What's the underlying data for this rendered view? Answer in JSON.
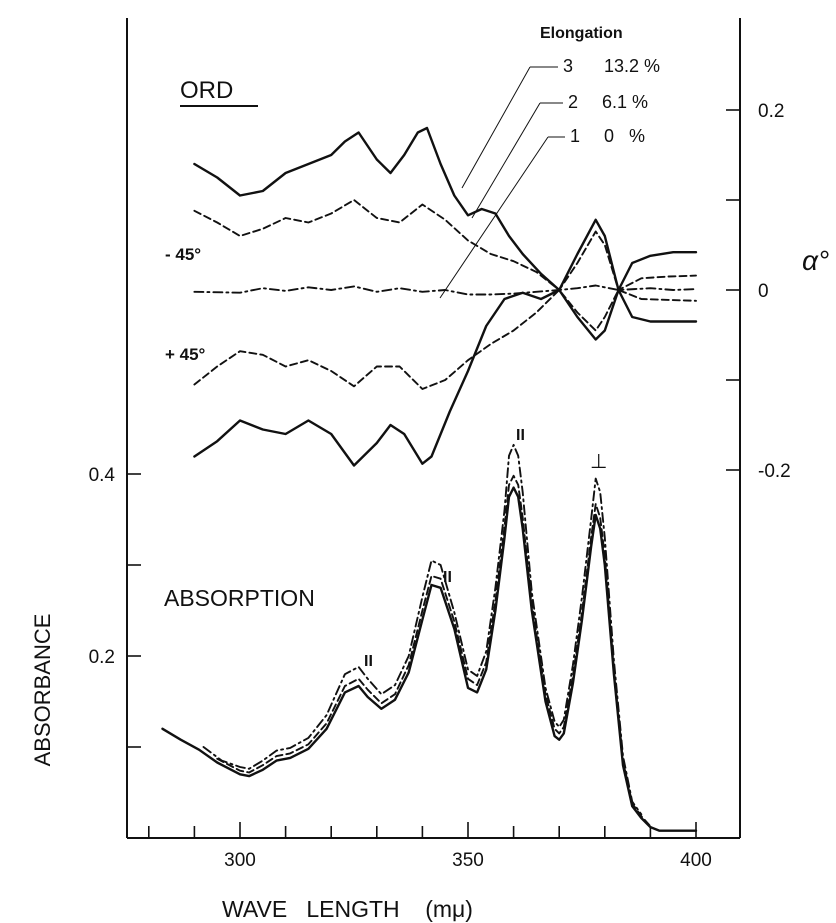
{
  "chart_data": {
    "type": "line",
    "x_unit_label": "WAVE LENGTH (mμ)",
    "xlabel": "WAVE   LENGTH    (mμ)",
    "xlim": [
      270,
      408
    ],
    "xticks": [
      300,
      350,
      400
    ],
    "ylabel_left": "ABSORBANCE",
    "ylim_left": [
      0,
      0.4
    ],
    "yticks_left": [
      0.2,
      0.4
    ],
    "ylabel_right": "α°",
    "ylim_right": [
      -0.2,
      0.2
    ],
    "yticks_right": [
      0.2,
      0,
      -0.2
    ],
    "yticks_right_labels": [
      "0.2",
      "0",
      "-0.2"
    ],
    "grid": false,
    "annotations": {
      "ord_title": "ORD",
      "abs_title": "ABSORPTION",
      "elongation_header": "Elongation",
      "minus45": "- 45°",
      "plus45": "+ 45°",
      "legend": [
        {
          "num": "3",
          "value": "13.2 %"
        },
        {
          "num": "2",
          "value": "6.1 %"
        },
        {
          "num": "1",
          "value": "0   %"
        }
      ],
      "peak_marks": [
        "II",
        "II",
        "II",
        "⊥"
      ]
    },
    "ord_series": [
      {
        "name": "3  13.2 % (-45°)",
        "style": "solid",
        "x": [
          290,
          295,
          300,
          305,
          310,
          315,
          320,
          323,
          326,
          330,
          333,
          336,
          339,
          341,
          344,
          347,
          350,
          353,
          356,
          359,
          362,
          366,
          370,
          374,
          378,
          380,
          383,
          386,
          390,
          395,
          400
        ],
        "y": [
          0.14,
          0.125,
          0.105,
          0.11,
          0.13,
          0.14,
          0.15,
          0.165,
          0.175,
          0.145,
          0.13,
          0.15,
          0.175,
          0.18,
          0.14,
          0.105,
          0.083,
          0.09,
          0.085,
          0.06,
          0.04,
          0.018,
          0.0,
          0.04,
          0.078,
          0.06,
          0.0,
          0.03,
          0.038,
          0.042,
          0.042
        ]
      },
      {
        "name": "2  6.1 % (-45°)",
        "style": "dashed",
        "x": [
          290,
          295,
          300,
          305,
          310,
          315,
          320,
          325,
          330,
          335,
          340,
          345,
          350,
          355,
          360,
          365,
          370,
          374,
          378,
          380,
          383,
          388,
          394,
          400
        ],
        "y": [
          0.088,
          0.075,
          0.06,
          0.068,
          0.08,
          0.075,
          0.085,
          0.1,
          0.08,
          0.075,
          0.095,
          0.078,
          0.055,
          0.04,
          0.032,
          0.02,
          0.0,
          0.03,
          0.065,
          0.05,
          0.0,
          0.013,
          0.015,
          0.016
        ]
      },
      {
        "name": "1  0 %",
        "style": "dashdot",
        "x": [
          290,
          300,
          305,
          310,
          315,
          320,
          325,
          330,
          335,
          340,
          345,
          350,
          355,
          360,
          370,
          374,
          378,
          383,
          390,
          395,
          400
        ],
        "y": [
          -0.002,
          -0.003,
          0.002,
          -0.001,
          0.003,
          0.0,
          0.004,
          -0.002,
          0.002,
          -0.002,
          0.0,
          -0.005,
          -0.005,
          -0.004,
          0.0,
          0.002,
          0.005,
          0.0,
          0.002,
          0.0,
          0.001
        ]
      },
      {
        "name": "2  6.1 % (+45°)",
        "style": "dashed",
        "x": [
          290,
          295,
          300,
          305,
          310,
          315,
          320,
          325,
          330,
          335,
          340,
          345,
          350,
          355,
          360,
          365,
          370,
          374,
          378,
          380,
          383,
          388,
          394,
          400
        ],
        "y": [
          -0.105,
          -0.085,
          -0.068,
          -0.072,
          -0.085,
          -0.078,
          -0.09,
          -0.107,
          -0.085,
          -0.085,
          -0.11,
          -0.1,
          -0.078,
          -0.06,
          -0.045,
          -0.025,
          0.0,
          -0.025,
          -0.045,
          -0.03,
          0.0,
          -0.01,
          -0.011,
          -0.012
        ]
      },
      {
        "name": "3  13.2 % (+45°)",
        "style": "solid",
        "x": [
          290,
          295,
          300,
          305,
          310,
          315,
          320,
          325,
          330,
          333,
          336,
          340,
          342,
          346,
          350,
          354,
          358,
          362,
          366,
          370,
          374,
          378,
          380,
          383,
          386,
          390,
          395,
          400
        ],
        "y": [
          -0.185,
          -0.168,
          -0.145,
          -0.155,
          -0.16,
          -0.145,
          -0.16,
          -0.195,
          -0.17,
          -0.15,
          -0.16,
          -0.193,
          -0.185,
          -0.135,
          -0.09,
          -0.04,
          -0.01,
          -0.003,
          -0.01,
          0.0,
          -0.03,
          -0.055,
          -0.045,
          0.0,
          -0.03,
          -0.035,
          -0.035,
          -0.035
        ]
      }
    ],
    "abs_series": [
      {
        "name": "1  0 %",
        "style": "solid",
        "x": [
          283,
          287,
          291,
          295,
          300,
          302,
          305,
          308,
          311,
          315,
          319,
          323,
          326,
          328,
          331,
          334,
          337,
          340,
          342,
          344,
          347,
          350,
          352,
          354,
          356,
          358,
          359,
          360,
          361,
          362,
          364,
          367,
          369,
          370,
          371,
          373,
          375,
          377,
          378,
          379,
          380,
          382,
          384,
          386,
          388,
          390,
          392,
          394,
          396,
          398,
          400
        ],
        "y": [
          0.12,
          0.108,
          0.097,
          0.083,
          0.07,
          0.068,
          0.075,
          0.085,
          0.088,
          0.098,
          0.12,
          0.16,
          0.167,
          0.155,
          0.142,
          0.152,
          0.182,
          0.24,
          0.278,
          0.275,
          0.23,
          0.165,
          0.16,
          0.185,
          0.25,
          0.33,
          0.375,
          0.385,
          0.375,
          0.34,
          0.25,
          0.15,
          0.112,
          0.108,
          0.115,
          0.17,
          0.24,
          0.32,
          0.355,
          0.34,
          0.3,
          0.18,
          0.08,
          0.035,
          0.022,
          0.012,
          0.008,
          0.008,
          0.008,
          0.008,
          0.008
        ]
      },
      {
        "name": "2  6.1 %",
        "style": "dashed",
        "x": [
          295,
          300,
          302,
          305,
          308,
          311,
          315,
          319,
          323,
          326,
          328,
          331,
          334,
          337,
          340,
          342,
          344,
          347,
          350,
          352,
          354,
          356,
          358,
          359,
          360,
          361,
          362,
          364,
          367,
          369,
          370,
          371,
          373,
          375,
          377,
          378,
          379,
          380,
          382,
          384,
          386,
          388,
          390
        ],
        "y": [
          0.087,
          0.074,
          0.072,
          0.08,
          0.09,
          0.093,
          0.103,
          0.126,
          0.167,
          0.175,
          0.163,
          0.148,
          0.158,
          0.19,
          0.25,
          0.288,
          0.285,
          0.238,
          0.175,
          0.168,
          0.193,
          0.26,
          0.342,
          0.388,
          0.398,
          0.388,
          0.352,
          0.258,
          0.158,
          0.12,
          0.115,
          0.122,
          0.178,
          0.248,
          0.33,
          0.367,
          0.352,
          0.31,
          0.185,
          0.085,
          0.038,
          0.024,
          0.013
        ]
      },
      {
        "name": "3  13.2 %",
        "style": "dashdot",
        "x": [
          292,
          296,
          300,
          302,
          305,
          308,
          311,
          315,
          319,
          323,
          326,
          328,
          331,
          334,
          337,
          340,
          342,
          344,
          347,
          350,
          352,
          354,
          356,
          358,
          359,
          360,
          361,
          362,
          364,
          367,
          369,
          370,
          371,
          373,
          375,
          377,
          378,
          379,
          380,
          382,
          384,
          386,
          388
        ],
        "y": [
          0.1,
          0.085,
          0.078,
          0.076,
          0.085,
          0.096,
          0.099,
          0.11,
          0.135,
          0.18,
          0.188,
          0.175,
          0.158,
          0.168,
          0.2,
          0.265,
          0.305,
          0.3,
          0.248,
          0.185,
          0.178,
          0.205,
          0.275,
          0.36,
          0.42,
          0.432,
          0.42,
          0.38,
          0.27,
          0.165,
          0.128,
          0.122,
          0.13,
          0.19,
          0.265,
          0.35,
          0.395,
          0.38,
          0.33,
          0.195,
          0.09,
          0.04,
          0.026
        ]
      }
    ]
  }
}
